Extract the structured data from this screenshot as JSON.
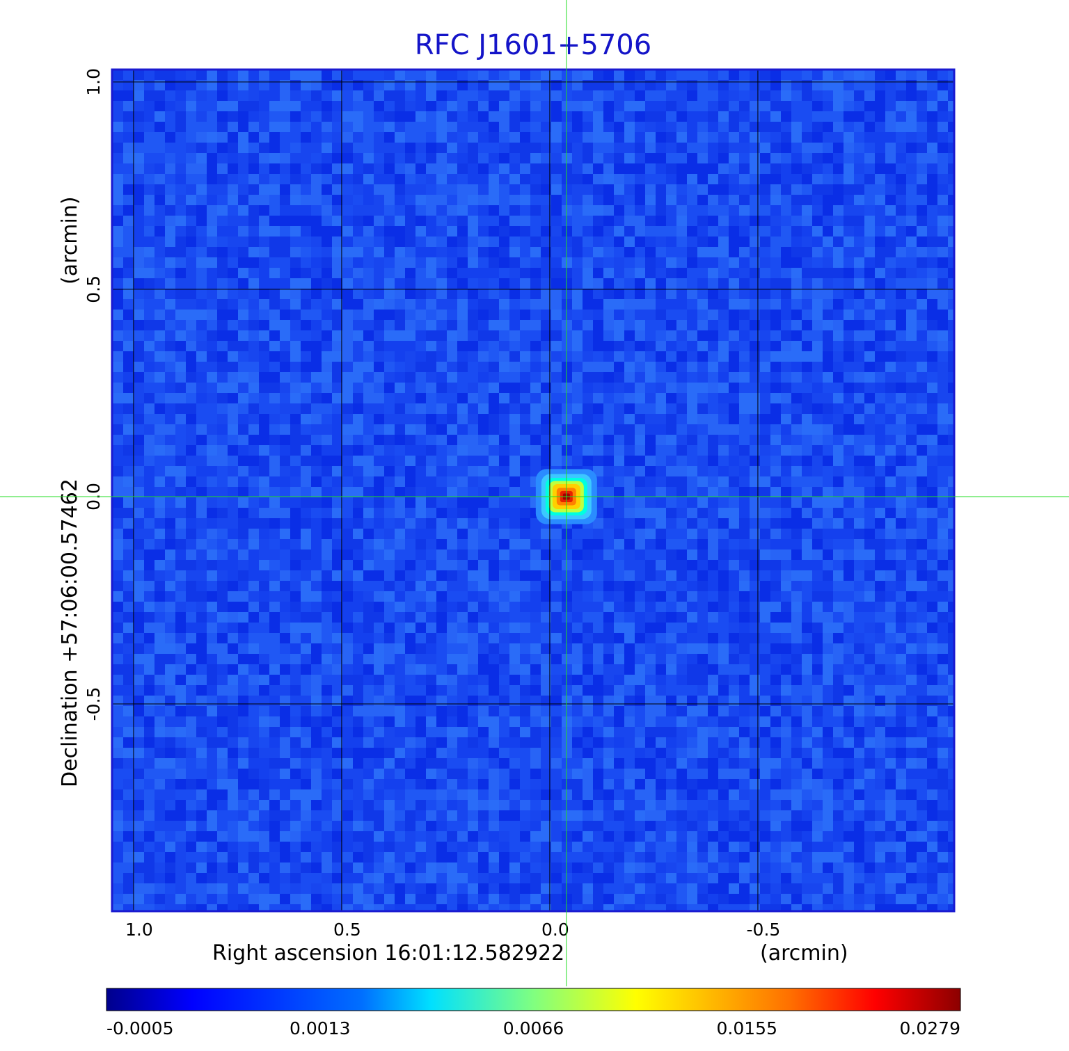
{
  "chart_data": {
    "type": "heatmap",
    "title": "RFC J1601+5706",
    "xlabel": "Right ascension  16:01:12.582922",
    "xunit": "(arcmin)",
    "ylabel": "Declination  +57:06:00.57462",
    "yunit": "(arcmin)",
    "x_ticks": [
      "1.0",
      "0.5",
      "0.0",
      "-0.5"
    ],
    "y_ticks": [
      "1.0",
      "0.5",
      "0.0",
      "-0.5"
    ],
    "x_tick_values": [
      1.0,
      0.5,
      0.0,
      -0.5
    ],
    "y_tick_values": [
      1.0,
      0.5,
      0.0,
      -0.5
    ],
    "xlim": [
      1.05,
      -0.97
    ],
    "ylim": [
      -1.0,
      1.03
    ],
    "grid": true,
    "colormap": "jet",
    "colorbar": {
      "tick_labels": [
        "-0.0005",
        "0.0013",
        "0.0066",
        "0.0155",
        "0.0279"
      ],
      "range": [
        -0.0005,
        0.0279
      ]
    },
    "peak": {
      "x": -0.04,
      "y": 0.0,
      "value": 0.0279
    },
    "crosshair": {
      "x": -0.04,
      "y": 0.0
    },
    "colors": {
      "frame": "#1a1ad0",
      "title": "#1414c8",
      "crosshair": "#22dd22",
      "background": "#1e50f0"
    }
  }
}
